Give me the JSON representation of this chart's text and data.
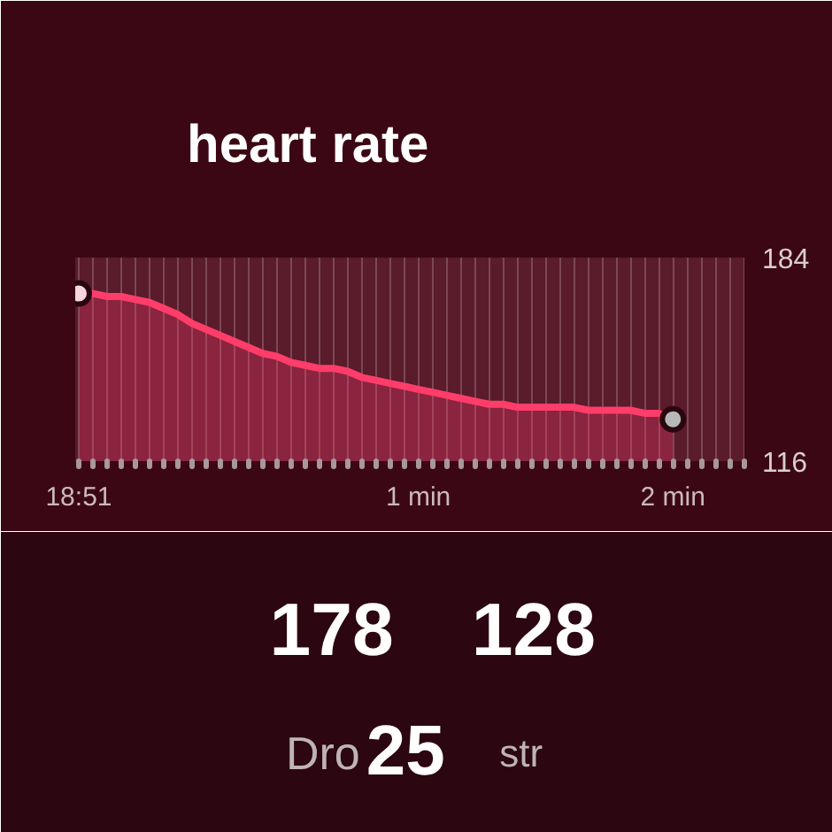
{
  "chart_data": {
    "type": "area",
    "title": "heart rate",
    "categories": [
      "18:51",
      null,
      null,
      null,
      null,
      null,
      null,
      null,
      null,
      null,
      null,
      null,
      null,
      null,
      null,
      null,
      null,
      null,
      null,
      null,
      null,
      null,
      null,
      null,
      "1 min",
      null,
      null,
      null,
      null,
      null,
      null,
      null,
      null,
      null,
      null,
      null,
      null,
      null,
      null,
      null,
      null,
      null,
      "2 min",
      null,
      null,
      null,
      null,
      null
    ],
    "series": [
      {
        "color": "#ff3d6a",
        "values": [
          172,
          172,
          171,
          171,
          170,
          169,
          167,
          165,
          162,
          160,
          158,
          156,
          154,
          152,
          151,
          149,
          148,
          147,
          147,
          146,
          144,
          143,
          142,
          141,
          140,
          139,
          138,
          137,
          136,
          135,
          135,
          134,
          134,
          134,
          134,
          134,
          133,
          133,
          133,
          133,
          132,
          132,
          130,
          null,
          null,
          null,
          null,
          null
        ]
      },
      {
        "type": "scatter",
        "marker": "circle",
        "color": "#f6d6de",
        "values": [
          172,
          null,
          null,
          null,
          null,
          null,
          null,
          null,
          null,
          null,
          null,
          null,
          null,
          null,
          null,
          null,
          null,
          null,
          null,
          null,
          null,
          null,
          null,
          null,
          null,
          null,
          null,
          null,
          null,
          null,
          null,
          null,
          null,
          null,
          null,
          null,
          null,
          null,
          null,
          null,
          null,
          null,
          null,
          null,
          null,
          null,
          null,
          null
        ]
      },
      {
        "type": "scatter",
        "marker": "circle",
        "color": "#b8b8b8",
        "values": [
          null,
          null,
          null,
          null,
          null,
          null,
          null,
          null,
          null,
          null,
          null,
          null,
          null,
          null,
          null,
          null,
          null,
          null,
          null,
          null,
          null,
          null,
          null,
          null,
          null,
          null,
          null,
          null,
          null,
          null,
          null,
          null,
          null,
          null,
          null,
          null,
          null,
          null,
          null,
          null,
          null,
          null,
          130,
          null,
          null,
          null,
          null,
          null
        ]
      }
    ],
    "ylim": [
      116,
      184
    ],
    "yticks": [
      116,
      184
    ],
    "grid": true,
    "annotations": [
      "178",
      "128",
      "Dro",
      "25",
      "str"
    ]
  }
}
